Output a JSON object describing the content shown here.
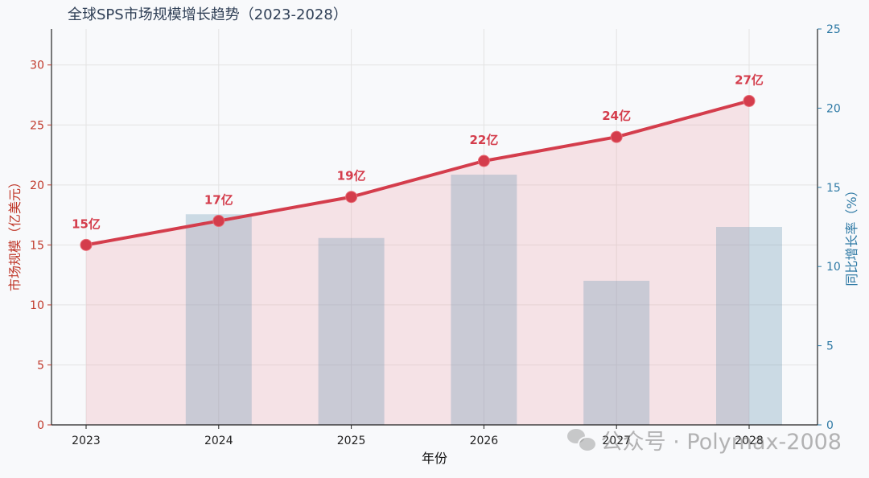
{
  "chart_data": {
    "type": "bar",
    "title": "全球SPS市场规模增长趋势（2023-2028）",
    "xlabel": "年份",
    "ylabel_left": "市场规模（亿美元）",
    "ylabel_right": "同比增长率（%）",
    "categories": [
      "2023",
      "2024",
      "2025",
      "2026",
      "2027",
      "2028"
    ],
    "ylim_left": [
      0,
      33
    ],
    "yticks_left": [
      0,
      5,
      10,
      15,
      20,
      25,
      30
    ],
    "ylim_right": [
      0,
      25
    ],
    "yticks_right": [
      0,
      5,
      10,
      15,
      20,
      25
    ],
    "grid": true,
    "series": [
      {
        "kind": "line-area",
        "axis": "left",
        "values": [
          15,
          17,
          19,
          22,
          24,
          27
        ],
        "labels": [
          "15亿",
          "17亿",
          "19亿",
          "22亿",
          "24亿",
          "27亿"
        ]
      },
      {
        "kind": "bar",
        "axis": "right",
        "values": [
          null,
          13.3,
          11.8,
          15.8,
          9.1,
          12.5
        ]
      }
    ]
  },
  "colors": {
    "line": "#d43d4c",
    "area": "rgba(235,160,168,0.25)",
    "bar": "rgba(100,145,175,0.30)",
    "left_axis": "#c0392b",
    "right_axis": "#2f7aa5",
    "grid": "#e3e3e3"
  },
  "watermark": {
    "icon": "wechat-icon",
    "text": "公众号 · Polymax-2008"
  }
}
